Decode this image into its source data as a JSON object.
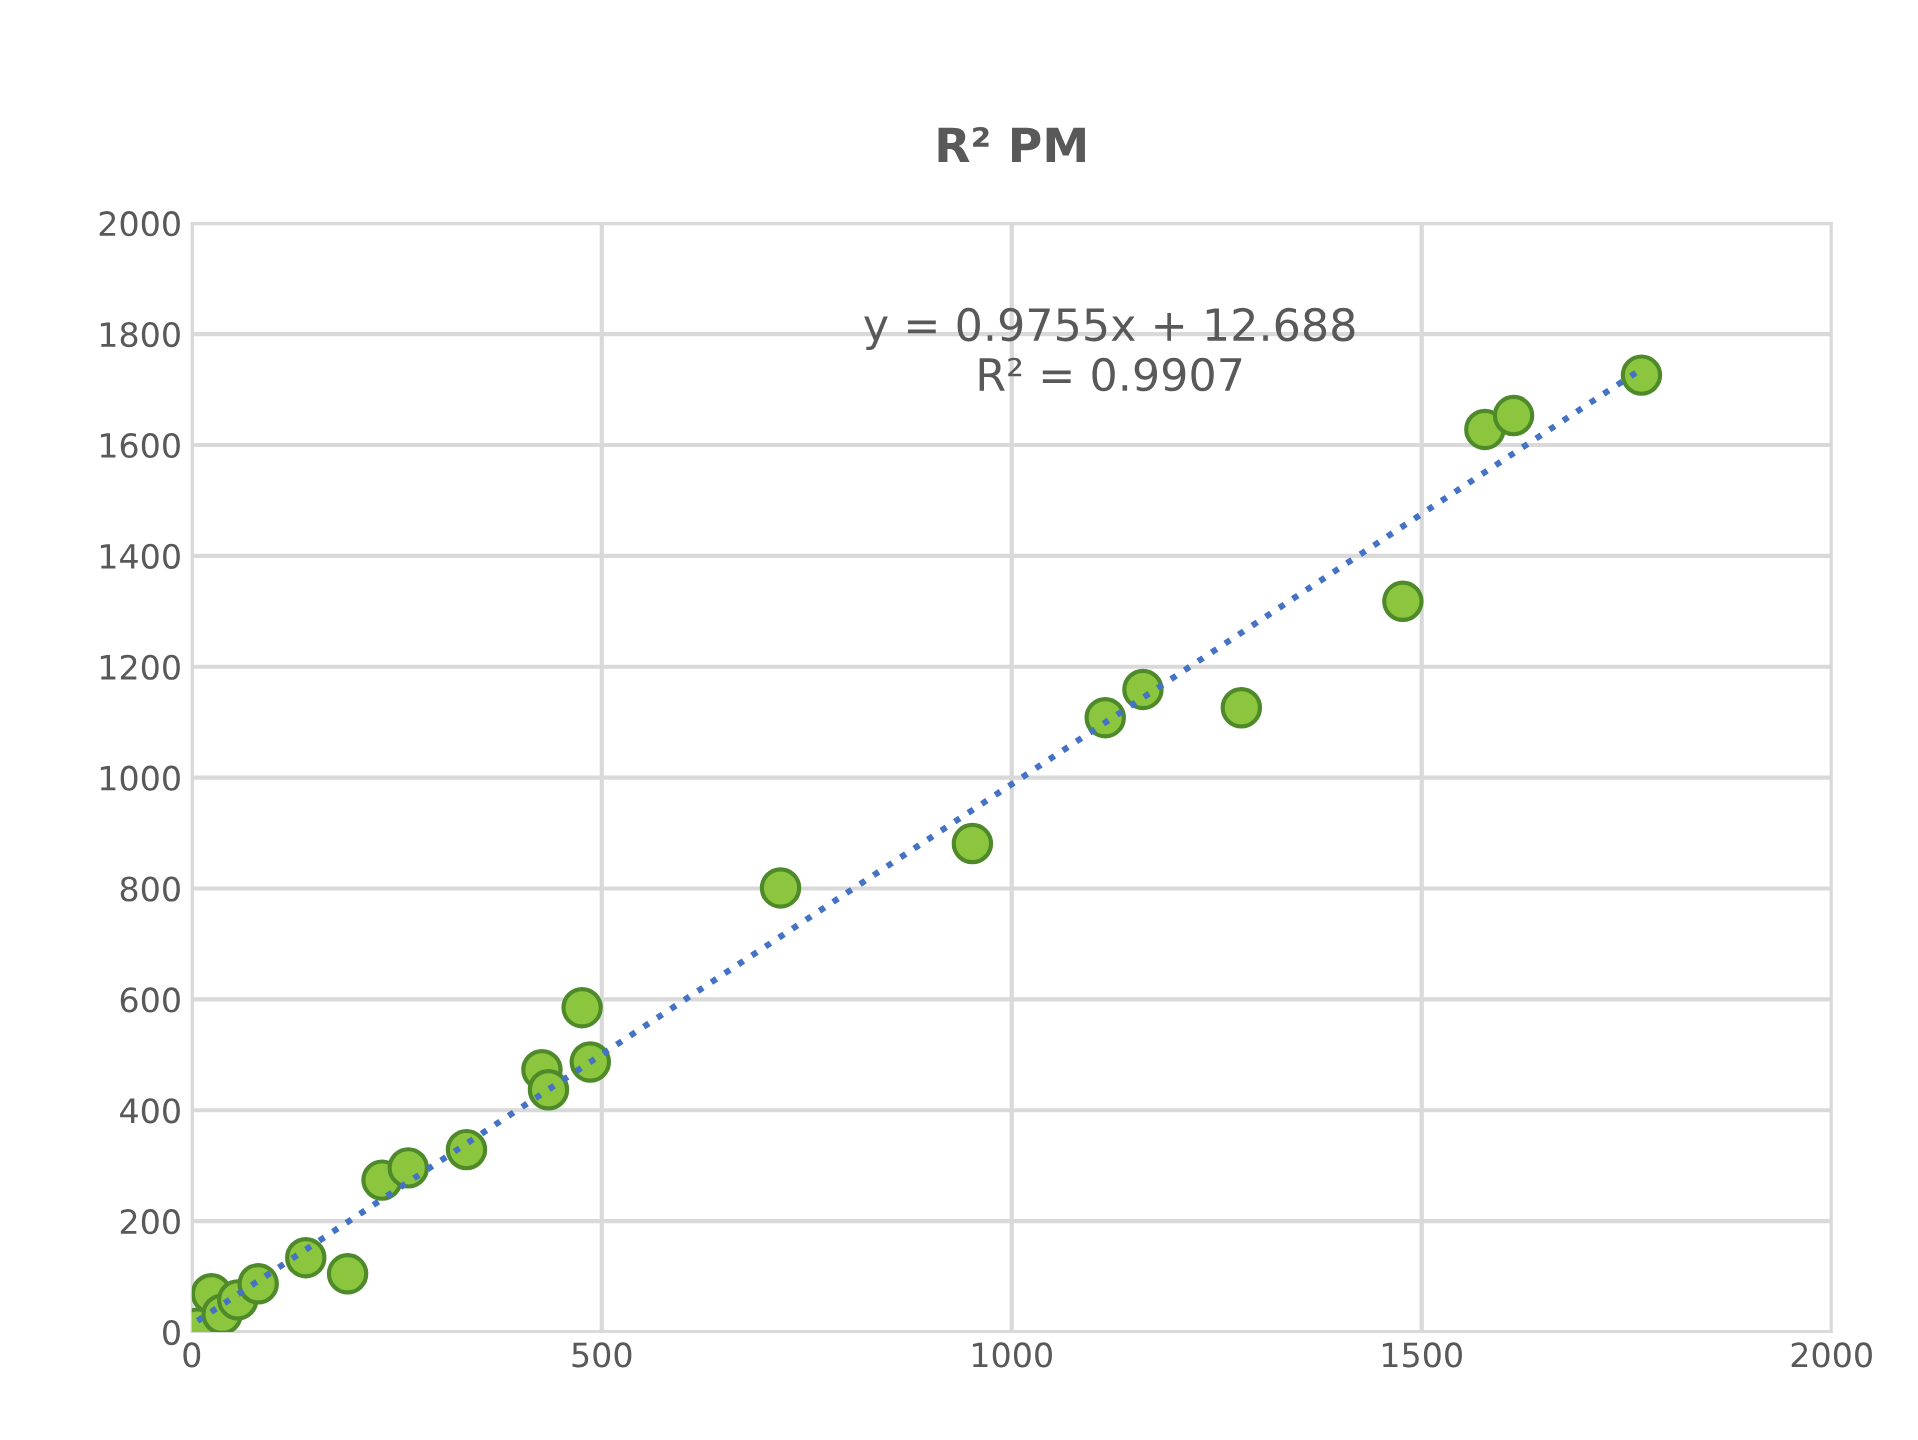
{
  "chart_data": {
    "type": "scatter",
    "title": "R² PM",
    "series": [
      {
        "color": "#8cc63f",
        "marker": "circle",
        "x": [
          7,
          24,
          37,
          56,
          81,
          139,
          190,
          232,
          264,
          335,
          427,
          435,
          476,
          486,
          718,
          952,
          1114,
          1160,
          1280,
          1477,
          1577,
          1612,
          1768
        ],
        "values": [
          7,
          69,
          32,
          58,
          87,
          134,
          105,
          274,
          296,
          329,
          473,
          437,
          585,
          487,
          801,
          881,
          1108,
          1159,
          1126,
          1318,
          1628,
          1653,
          1726
        ]
      },
      {
        "type": "line",
        "color": "#4472c4",
        "line_style": "dotted",
        "marker": "none",
        "x": [
          7,
          1768
        ],
        "values": [
          20,
          1737
        ]
      }
    ],
    "annotations": [
      "y = 0.9755x + 12.688",
      "R² = 0.9907"
    ],
    "xlim": [
      0,
      2000
    ],
    "xticks": [
      0,
      500,
      1000,
      1500,
      2000
    ],
    "ylim": [
      0,
      2000
    ],
    "yticks": [
      0,
      200,
      400,
      600,
      800,
      1000,
      1200,
      1400,
      1600,
      1800,
      2000
    ],
    "grid": true
  }
}
